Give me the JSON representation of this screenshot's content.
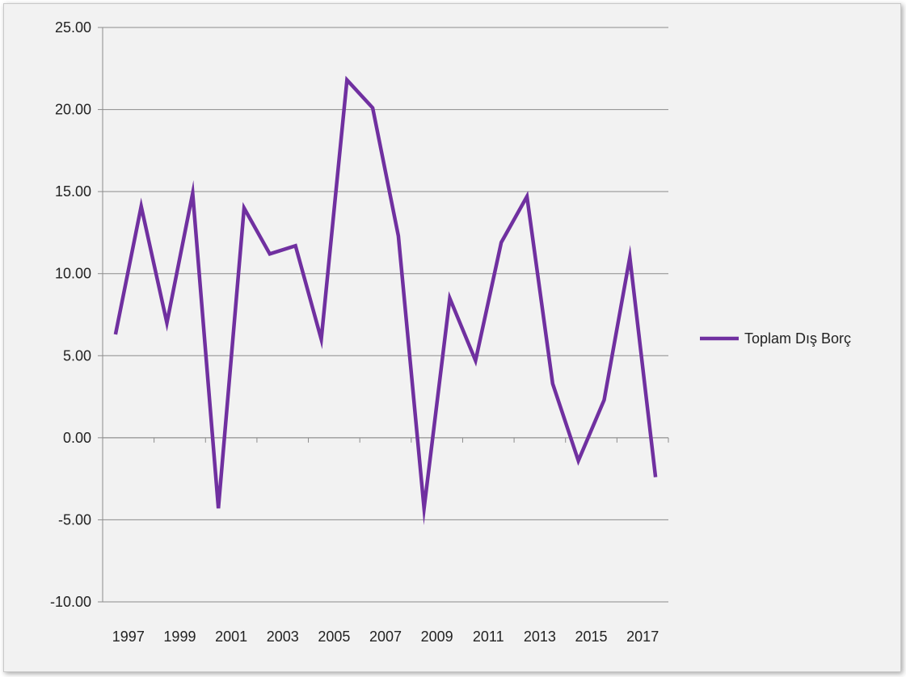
{
  "chart_data": {
    "type": "line",
    "x": [
      1997,
      1998,
      1999,
      2000,
      2001,
      2002,
      2003,
      2004,
      2005,
      2006,
      2007,
      2008,
      2009,
      2010,
      2011,
      2012,
      2013,
      2014,
      2015,
      2016,
      2017,
      2018
    ],
    "x_tick_labels": [
      "1997",
      "1999",
      "2001",
      "2003",
      "2005",
      "2007",
      "2009",
      "2011",
      "2013",
      "2015",
      "2017"
    ],
    "series": [
      {
        "name": "Toplam Dış Borç",
        "color": "#7030a0",
        "values": [
          6.3,
          14.1,
          7.0,
          14.9,
          -4.3,
          14.0,
          11.2,
          11.7,
          6.0,
          21.8,
          20.1,
          12.3,
          -4.3,
          8.5,
          4.7,
          11.9,
          14.7,
          3.3,
          -1.4,
          2.3,
          11.0,
          -2.4
        ]
      }
    ],
    "y_tick_labels": [
      "25.00",
      "20.00",
      "15.00",
      "10.00",
      "5.00",
      "0.00",
      "-5.00",
      "-10.00"
    ],
    "ylim": [
      -10,
      25
    ],
    "y_tick_step": 5,
    "grid": true,
    "legend_position": "right"
  }
}
